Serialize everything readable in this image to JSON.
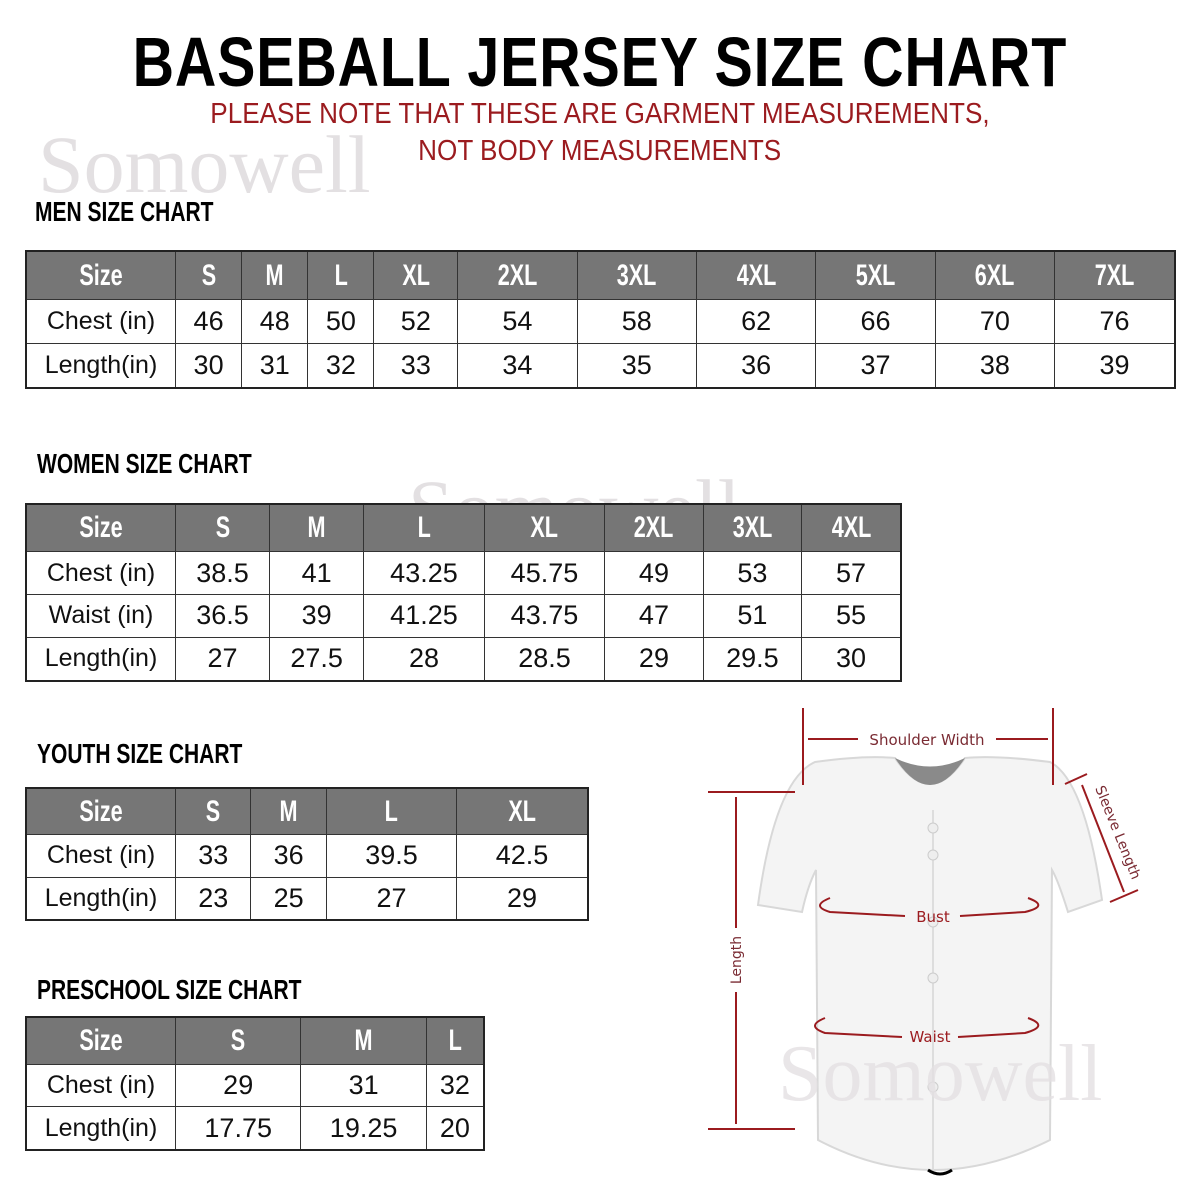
{
  "title": "BASEBALL JERSEY SIZE CHART",
  "note_line1": "PLEASE NOTE THAT THESE ARE GARMENT MEASUREMENTS,",
  "note_line2": "NOT BODY MEASUREMENTS",
  "watermark": "Somowell",
  "colors": {
    "accent_red": "#9b1b1f",
    "header_gray": "#767676"
  },
  "tables": [
    {
      "id": "men",
      "heading": "MEN SIZE CHART",
      "header": [
        "Size",
        "S",
        "M",
        "L",
        "XL",
        "2XL",
        "3XL",
        "4XL",
        "5XL",
        "6XL",
        "7XL"
      ],
      "rows": [
        [
          "Chest (in)",
          "46",
          "48",
          "50",
          "52",
          "54",
          "58",
          "62",
          "66",
          "70",
          "76"
        ],
        [
          "Length(in)",
          "30",
          "31",
          "32",
          "33",
          "34",
          "35",
          "36",
          "37",
          "38",
          "39"
        ]
      ]
    },
    {
      "id": "women",
      "heading": "WOMEN SIZE CHART",
      "header": [
        "Size",
        "S",
        "M",
        "L",
        "XL",
        "2XL",
        "3XL",
        "4XL"
      ],
      "rows": [
        [
          "Chest (in)",
          "38.5",
          "41",
          "43.25",
          "45.75",
          "49",
          "53",
          "57"
        ],
        [
          "Waist (in)",
          "36.5",
          "39",
          "41.25",
          "43.75",
          "47",
          "51",
          "55"
        ],
        [
          "Length(in)",
          "27",
          "27.5",
          "28",
          "28.5",
          "29",
          "29.5",
          "30"
        ]
      ]
    },
    {
      "id": "youth",
      "heading": "YOUTH SIZE CHART",
      "header": [
        "Size",
        "S",
        "M",
        "L",
        "XL"
      ],
      "rows": [
        [
          "Chest (in)",
          "33",
          "36",
          "39.5",
          "42.5"
        ],
        [
          "Length(in)",
          "23",
          "25",
          "27",
          "29"
        ]
      ]
    },
    {
      "id": "preschool",
      "heading": "PRESCHOOL SIZE CHART",
      "header": [
        "Size",
        "S",
        "M",
        "L"
      ],
      "rows": [
        [
          "Chest (in)",
          "29",
          "31",
          "32"
        ],
        [
          "Length(in)",
          "17.75",
          "19.25",
          "20"
        ]
      ]
    }
  ],
  "diagram": {
    "shoulder_width": "Shoulder Width",
    "sleeve_length": "Sleeve Length",
    "bust": "Bust",
    "waist": "Waist",
    "length": "Length"
  }
}
